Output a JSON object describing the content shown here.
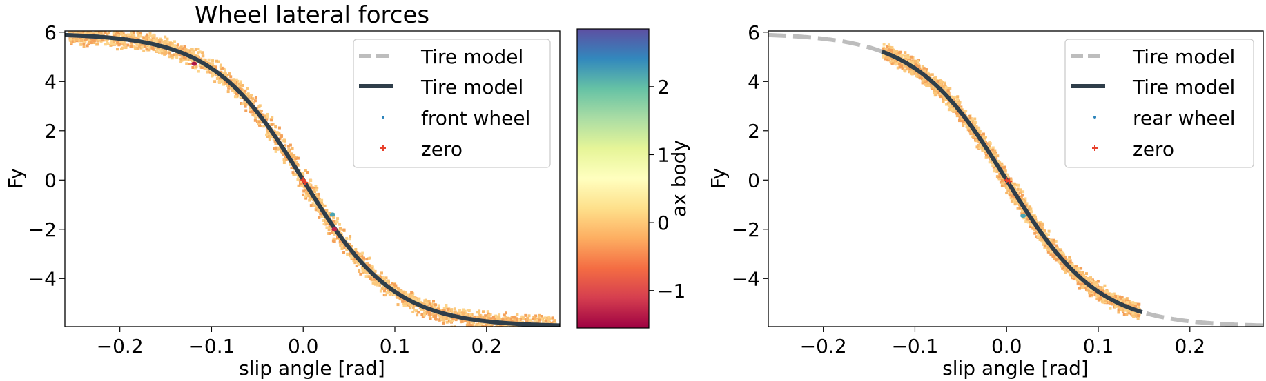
{
  "colors": {
    "model_gray": "#bdbdbd",
    "model_dark": "#2f3e4a",
    "zero_marker": "#e8412c",
    "front_marker": "#2b83ba",
    "cloud_base": "#f4a15a",
    "cloud_light": "#fdd38a",
    "colormap": [
      "#9e0142",
      "#d53e4f",
      "#f46d43",
      "#fdae61",
      "#fee08b",
      "#ffffbf",
      "#e6f598",
      "#abdda4",
      "#66c2a5",
      "#3288bd",
      "#5e4fa2"
    ]
  },
  "colorbar": {
    "label": "ax body",
    "range": [
      -1.55,
      2.85
    ],
    "ticks": [
      -1,
      0,
      1,
      2
    ],
    "tick_labels": [
      "−1",
      "0",
      "1",
      "2"
    ]
  },
  "chart_data": [
    {
      "type": "scatter",
      "title": "Wheel lateral forces",
      "xlabel": "slip angle [rad]",
      "ylabel": "Fy",
      "xlim": [
        -0.26,
        0.28
      ],
      "ylim": [
        -5.95,
        6.05
      ],
      "xticks": [
        -0.2,
        -0.1,
        0.0,
        0.1,
        0.2
      ],
      "xtick_labels": [
        "−0.2",
        "−0.1",
        "0.0",
        "0.1",
        "0.2"
      ],
      "yticks": [
        -4,
        -2,
        0,
        2,
        4,
        6
      ],
      "ytick_labels": [
        "−4",
        "−2",
        "0",
        "2",
        "4",
        "6"
      ],
      "tire_model": {
        "peak_force": 5.95,
        "stiffness": 10.0,
        "x_range": [
          -0.26,
          0.28
        ]
      },
      "model_light_range": [
        -0.26,
        0.28
      ],
      "model_dark_range": [
        -0.26,
        0.28
      ],
      "scatter_band": {
        "x_range": [
          -0.255,
          0.275
        ],
        "half_width": 0.25,
        "bulge": 0.55
      },
      "zero_points": [
        [
          0.0,
          0.0
        ],
        [
          0.002,
          -0.1
        ]
      ],
      "accent_points": [
        {
          "x": -0.119,
          "y": 4.72,
          "ax": -1.4
        },
        {
          "x": 0.034,
          "y": -2.0,
          "ax": -1.3
        },
        {
          "x": 0.032,
          "y": -1.4,
          "ax": 2.2
        }
      ],
      "legend": [
        "Tire model",
        "Tire model",
        "front wheel",
        "zero"
      ]
    },
    {
      "type": "scatter",
      "title": "",
      "xlabel": "slip angle [rad]",
      "ylabel": "Fy",
      "xlim": [
        -0.26,
        0.28
      ],
      "ylim": [
        -5.95,
        6.05
      ],
      "xticks": [
        -0.2,
        -0.1,
        0.0,
        0.1,
        0.2
      ],
      "xtick_labels": [
        "−0.2",
        "−0.1",
        "0.0",
        "0.1",
        "0.2"
      ],
      "yticks": [
        -4,
        -2,
        0,
        2,
        4,
        6
      ],
      "ytick_labels": [
        "−4",
        "−2",
        "0",
        "2",
        "4",
        "6"
      ],
      "tire_model": {
        "peak_force": 5.95,
        "stiffness": 10.0,
        "x_range": [
          -0.26,
          0.28
        ]
      },
      "model_light_range": [
        -0.26,
        0.28
      ],
      "model_dark_range": [
        -0.136,
        0.148
      ],
      "scatter_band": {
        "x_range": [
          -0.135,
          0.145
        ],
        "half_width": 0.22,
        "bulge": 0.45
      },
      "zero_points": [
        [
          0.0,
          0.0
        ],
        [
          0.003,
          -0.05
        ]
      ],
      "accent_points": [
        {
          "x": 0.018,
          "y": -1.45,
          "ax": 2.2
        }
      ],
      "legend": [
        "Tire model",
        "Tire model",
        "rear wheel",
        "zero"
      ]
    }
  ]
}
